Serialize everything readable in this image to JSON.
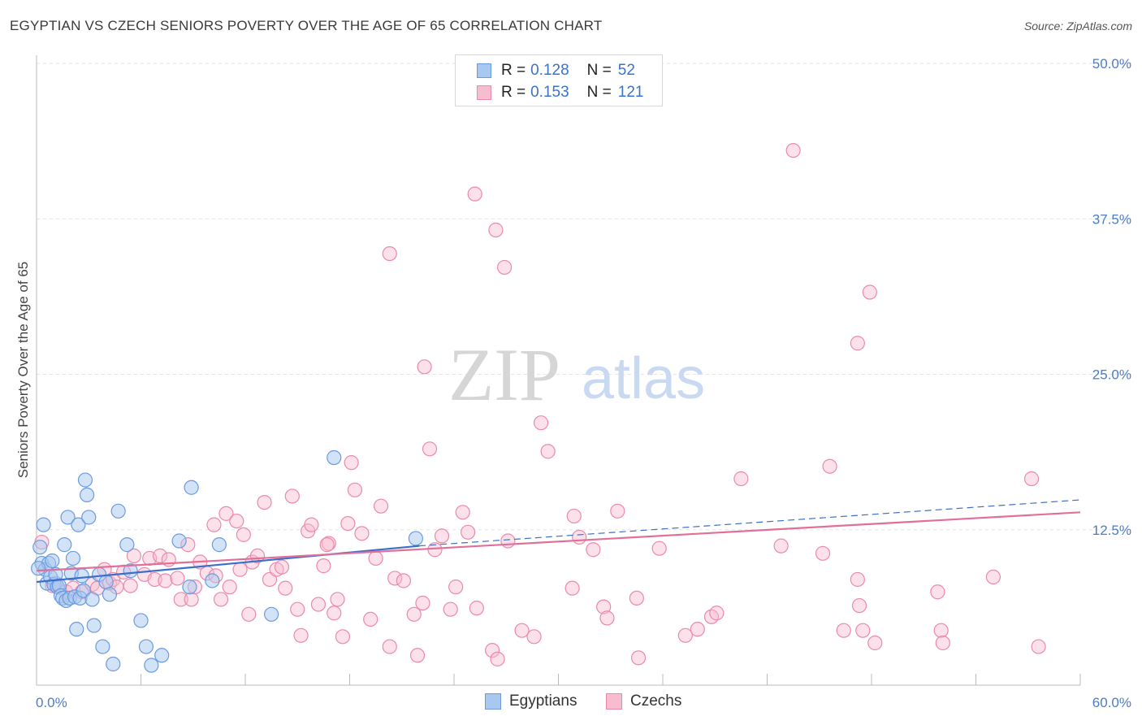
{
  "title": "EGYPTIAN VS CZECH SENIORS POVERTY OVER THE AGE OF 65 CORRELATION CHART",
  "source": "Source: ZipAtlas.com",
  "watermark": {
    "part1": "ZIP",
    "part2": "atlas"
  },
  "colors": {
    "egyptians_fill": "#a8c8f0",
    "egyptians_stroke": "#6a9be0",
    "egyptians_line": "#3c6fc8",
    "czechs_fill": "#f8bcd0",
    "czechs_stroke": "#ea8aa9",
    "czechs_line": "#e0709a",
    "tick_text": "#4a7cc9"
  },
  "legend": {
    "rows": [
      {
        "r_label": "R =",
        "r_value": "0.128",
        "n_label": "N =",
        "n_value": "52"
      },
      {
        "r_label": "R =",
        "r_value": "0.153",
        "n_label": "N =",
        "n_value": "121"
      }
    ]
  },
  "bottom_legend": {
    "egyptians": "Egyptians",
    "czechs": "Czechs"
  },
  "chart_data": {
    "type": "scatter",
    "xlabel": "",
    "ylabel": "Seniors Poverty Over the Age of 65",
    "xlim": [
      0,
      60
    ],
    "ylim": [
      0,
      50
    ],
    "x_tick_labels": [
      "0.0%",
      "60.0%"
    ],
    "y_tick_labels": [
      "12.5%",
      "25.0%",
      "37.5%",
      "50.0%"
    ],
    "y_ticks": [
      12.5,
      25.0,
      37.5,
      50.0
    ],
    "grid": true,
    "series": [
      {
        "name": "Egyptians",
        "r": 0.128,
        "n": 52,
        "trend": {
          "x0": 0,
          "y0": 8.3,
          "x1": 22,
          "y1": 11.2,
          "dash_x1": 60,
          "dash_y1": 14.9
        },
        "points": [
          [
            0.2,
            11.1
          ],
          [
            0.3,
            9.8
          ],
          [
            0.4,
            12.9
          ],
          [
            0.5,
            9.3
          ],
          [
            0.6,
            8.2
          ],
          [
            0.7,
            9.8
          ],
          [
            0.8,
            8.7
          ],
          [
            0.9,
            10.0
          ],
          [
            1.0,
            8.1
          ],
          [
            1.1,
            8.9
          ],
          [
            1.2,
            7.9
          ],
          [
            1.3,
            8.0
          ],
          [
            1.4,
            7.2
          ],
          [
            1.5,
            7.0
          ],
          [
            1.6,
            11.3
          ],
          [
            1.7,
            6.8
          ],
          [
            1.8,
            13.5
          ],
          [
            1.9,
            7.0
          ],
          [
            2.0,
            9.0
          ],
          [
            2.1,
            10.2
          ],
          [
            2.2,
            7.1
          ],
          [
            2.3,
            4.5
          ],
          [
            2.4,
            12.9
          ],
          [
            2.5,
            7.0
          ],
          [
            2.6,
            8.8
          ],
          [
            2.7,
            7.6
          ],
          [
            2.8,
            16.5
          ],
          [
            2.9,
            15.3
          ],
          [
            3.0,
            13.5
          ],
          [
            3.2,
            6.9
          ],
          [
            3.3,
            4.8
          ],
          [
            3.6,
            8.9
          ],
          [
            3.8,
            3.1
          ],
          [
            4.0,
            8.3
          ],
          [
            4.2,
            7.3
          ],
          [
            4.4,
            1.7
          ],
          [
            4.7,
            14.0
          ],
          [
            5.2,
            11.3
          ],
          [
            5.4,
            9.2
          ],
          [
            6.0,
            5.2
          ],
          [
            6.3,
            3.1
          ],
          [
            6.6,
            1.6
          ],
          [
            7.2,
            2.4
          ],
          [
            8.2,
            11.6
          ],
          [
            8.9,
            15.9
          ],
          [
            8.8,
            7.9
          ],
          [
            10.1,
            8.4
          ],
          [
            10.5,
            11.3
          ],
          [
            13.5,
            5.7
          ],
          [
            17.1,
            18.3
          ],
          [
            21.8,
            11.8
          ],
          [
            0.1,
            9.4
          ]
        ]
      },
      {
        "name": "Czechs",
        "r": 0.153,
        "n": 121,
        "trend": {
          "x0": 0,
          "y0": 9.2,
          "x1": 60,
          "y1": 13.9
        },
        "points": [
          [
            0.3,
            11.5
          ],
          [
            0.9,
            8.0
          ],
          [
            1.1,
            8.2
          ],
          [
            1.7,
            7.5
          ],
          [
            2.1,
            7.8
          ],
          [
            2.6,
            7.5
          ],
          [
            3.2,
            8.1
          ],
          [
            3.5,
            7.8
          ],
          [
            3.9,
            9.3
          ],
          [
            4.2,
            8.2
          ],
          [
            4.4,
            8.5
          ],
          [
            4.6,
            7.9
          ],
          [
            5.0,
            9.1
          ],
          [
            5.4,
            8.0
          ],
          [
            5.6,
            10.4
          ],
          [
            6.2,
            8.9
          ],
          [
            6.5,
            10.2
          ],
          [
            6.8,
            8.5
          ],
          [
            7.1,
            10.4
          ],
          [
            7.4,
            8.4
          ],
          [
            7.6,
            10.1
          ],
          [
            8.1,
            8.6
          ],
          [
            8.3,
            6.9
          ],
          [
            8.7,
            11.3
          ],
          [
            8.9,
            6.9
          ],
          [
            9.1,
            7.9
          ],
          [
            9.4,
            9.9
          ],
          [
            9.8,
            9.0
          ],
          [
            10.2,
            12.9
          ],
          [
            10.3,
            8.8
          ],
          [
            10.6,
            6.9
          ],
          [
            10.9,
            13.8
          ],
          [
            11.1,
            7.9
          ],
          [
            11.5,
            13.2
          ],
          [
            11.7,
            9.3
          ],
          [
            11.9,
            12.1
          ],
          [
            12.2,
            5.7
          ],
          [
            12.4,
            9.9
          ],
          [
            12.7,
            10.4
          ],
          [
            13.1,
            14.7
          ],
          [
            13.4,
            8.5
          ],
          [
            13.8,
            9.3
          ],
          [
            14.1,
            9.5
          ],
          [
            14.3,
            7.8
          ],
          [
            14.7,
            15.2
          ],
          [
            15.0,
            6.1
          ],
          [
            15.2,
            4.0
          ],
          [
            15.6,
            12.4
          ],
          [
            15.8,
            12.9
          ],
          [
            16.2,
            6.5
          ],
          [
            16.5,
            9.6
          ],
          [
            16.8,
            11.4
          ],
          [
            17.1,
            5.8
          ],
          [
            17.3,
            6.9
          ],
          [
            17.6,
            3.9
          ],
          [
            17.9,
            13.0
          ],
          [
            18.1,
            17.9
          ],
          [
            18.3,
            15.7
          ],
          [
            18.7,
            12.2
          ],
          [
            19.2,
            5.3
          ],
          [
            19.5,
            10.2
          ],
          [
            19.8,
            14.4
          ],
          [
            20.3,
            3.1
          ],
          [
            20.6,
            8.6
          ],
          [
            21.1,
            8.4
          ],
          [
            21.7,
            5.7
          ],
          [
            21.9,
            2.4
          ],
          [
            22.2,
            6.6
          ],
          [
            22.6,
            19.0
          ],
          [
            22.9,
            10.9
          ],
          [
            23.3,
            12.0
          ],
          [
            23.8,
            6.1
          ],
          [
            24.1,
            7.9
          ],
          [
            24.5,
            13.9
          ],
          [
            24.8,
            12.3
          ],
          [
            25.3,
            6.2
          ],
          [
            26.2,
            2.8
          ],
          [
            26.5,
            2.1
          ],
          [
            27.1,
            11.6
          ],
          [
            27.9,
            4.4
          ],
          [
            29.0,
            21.1
          ],
          [
            29.4,
            18.8
          ],
          [
            30.8,
            7.8
          ],
          [
            30.9,
            13.6
          ],
          [
            31.2,
            11.9
          ],
          [
            32.0,
            10.9
          ],
          [
            32.6,
            6.3
          ],
          [
            32.8,
            5.4
          ],
          [
            33.4,
            14.0
          ],
          [
            34.5,
            7.0
          ],
          [
            34.6,
            2.2
          ],
          [
            35.8,
            11.0
          ],
          [
            37.3,
            4.0
          ],
          [
            38.0,
            4.5
          ],
          [
            38.8,
            5.5
          ],
          [
            39.1,
            5.8
          ],
          [
            40.5,
            16.6
          ],
          [
            42.8,
            11.2
          ],
          [
            45.6,
            17.6
          ],
          [
            45.2,
            10.6
          ],
          [
            46.4,
            4.4
          ],
          [
            47.2,
            8.5
          ],
          [
            47.3,
            6.4
          ],
          [
            47.5,
            4.4
          ],
          [
            48.2,
            3.4
          ],
          [
            57.2,
            16.6
          ],
          [
            55.0,
            8.7
          ],
          [
            57.6,
            3.1
          ],
          [
            51.8,
            7.5
          ],
          [
            52.0,
            4.4
          ],
          [
            52.1,
            3.4
          ],
          [
            47.2,
            27.5
          ],
          [
            47.9,
            31.6
          ],
          [
            43.5,
            43.0
          ],
          [
            20.3,
            34.7
          ],
          [
            25.2,
            39.5
          ],
          [
            26.4,
            36.6
          ],
          [
            26.9,
            33.6
          ],
          [
            22.3,
            25.6
          ],
          [
            28.6,
            3.9
          ],
          [
            16.7,
            11.3
          ]
        ]
      }
    ]
  }
}
